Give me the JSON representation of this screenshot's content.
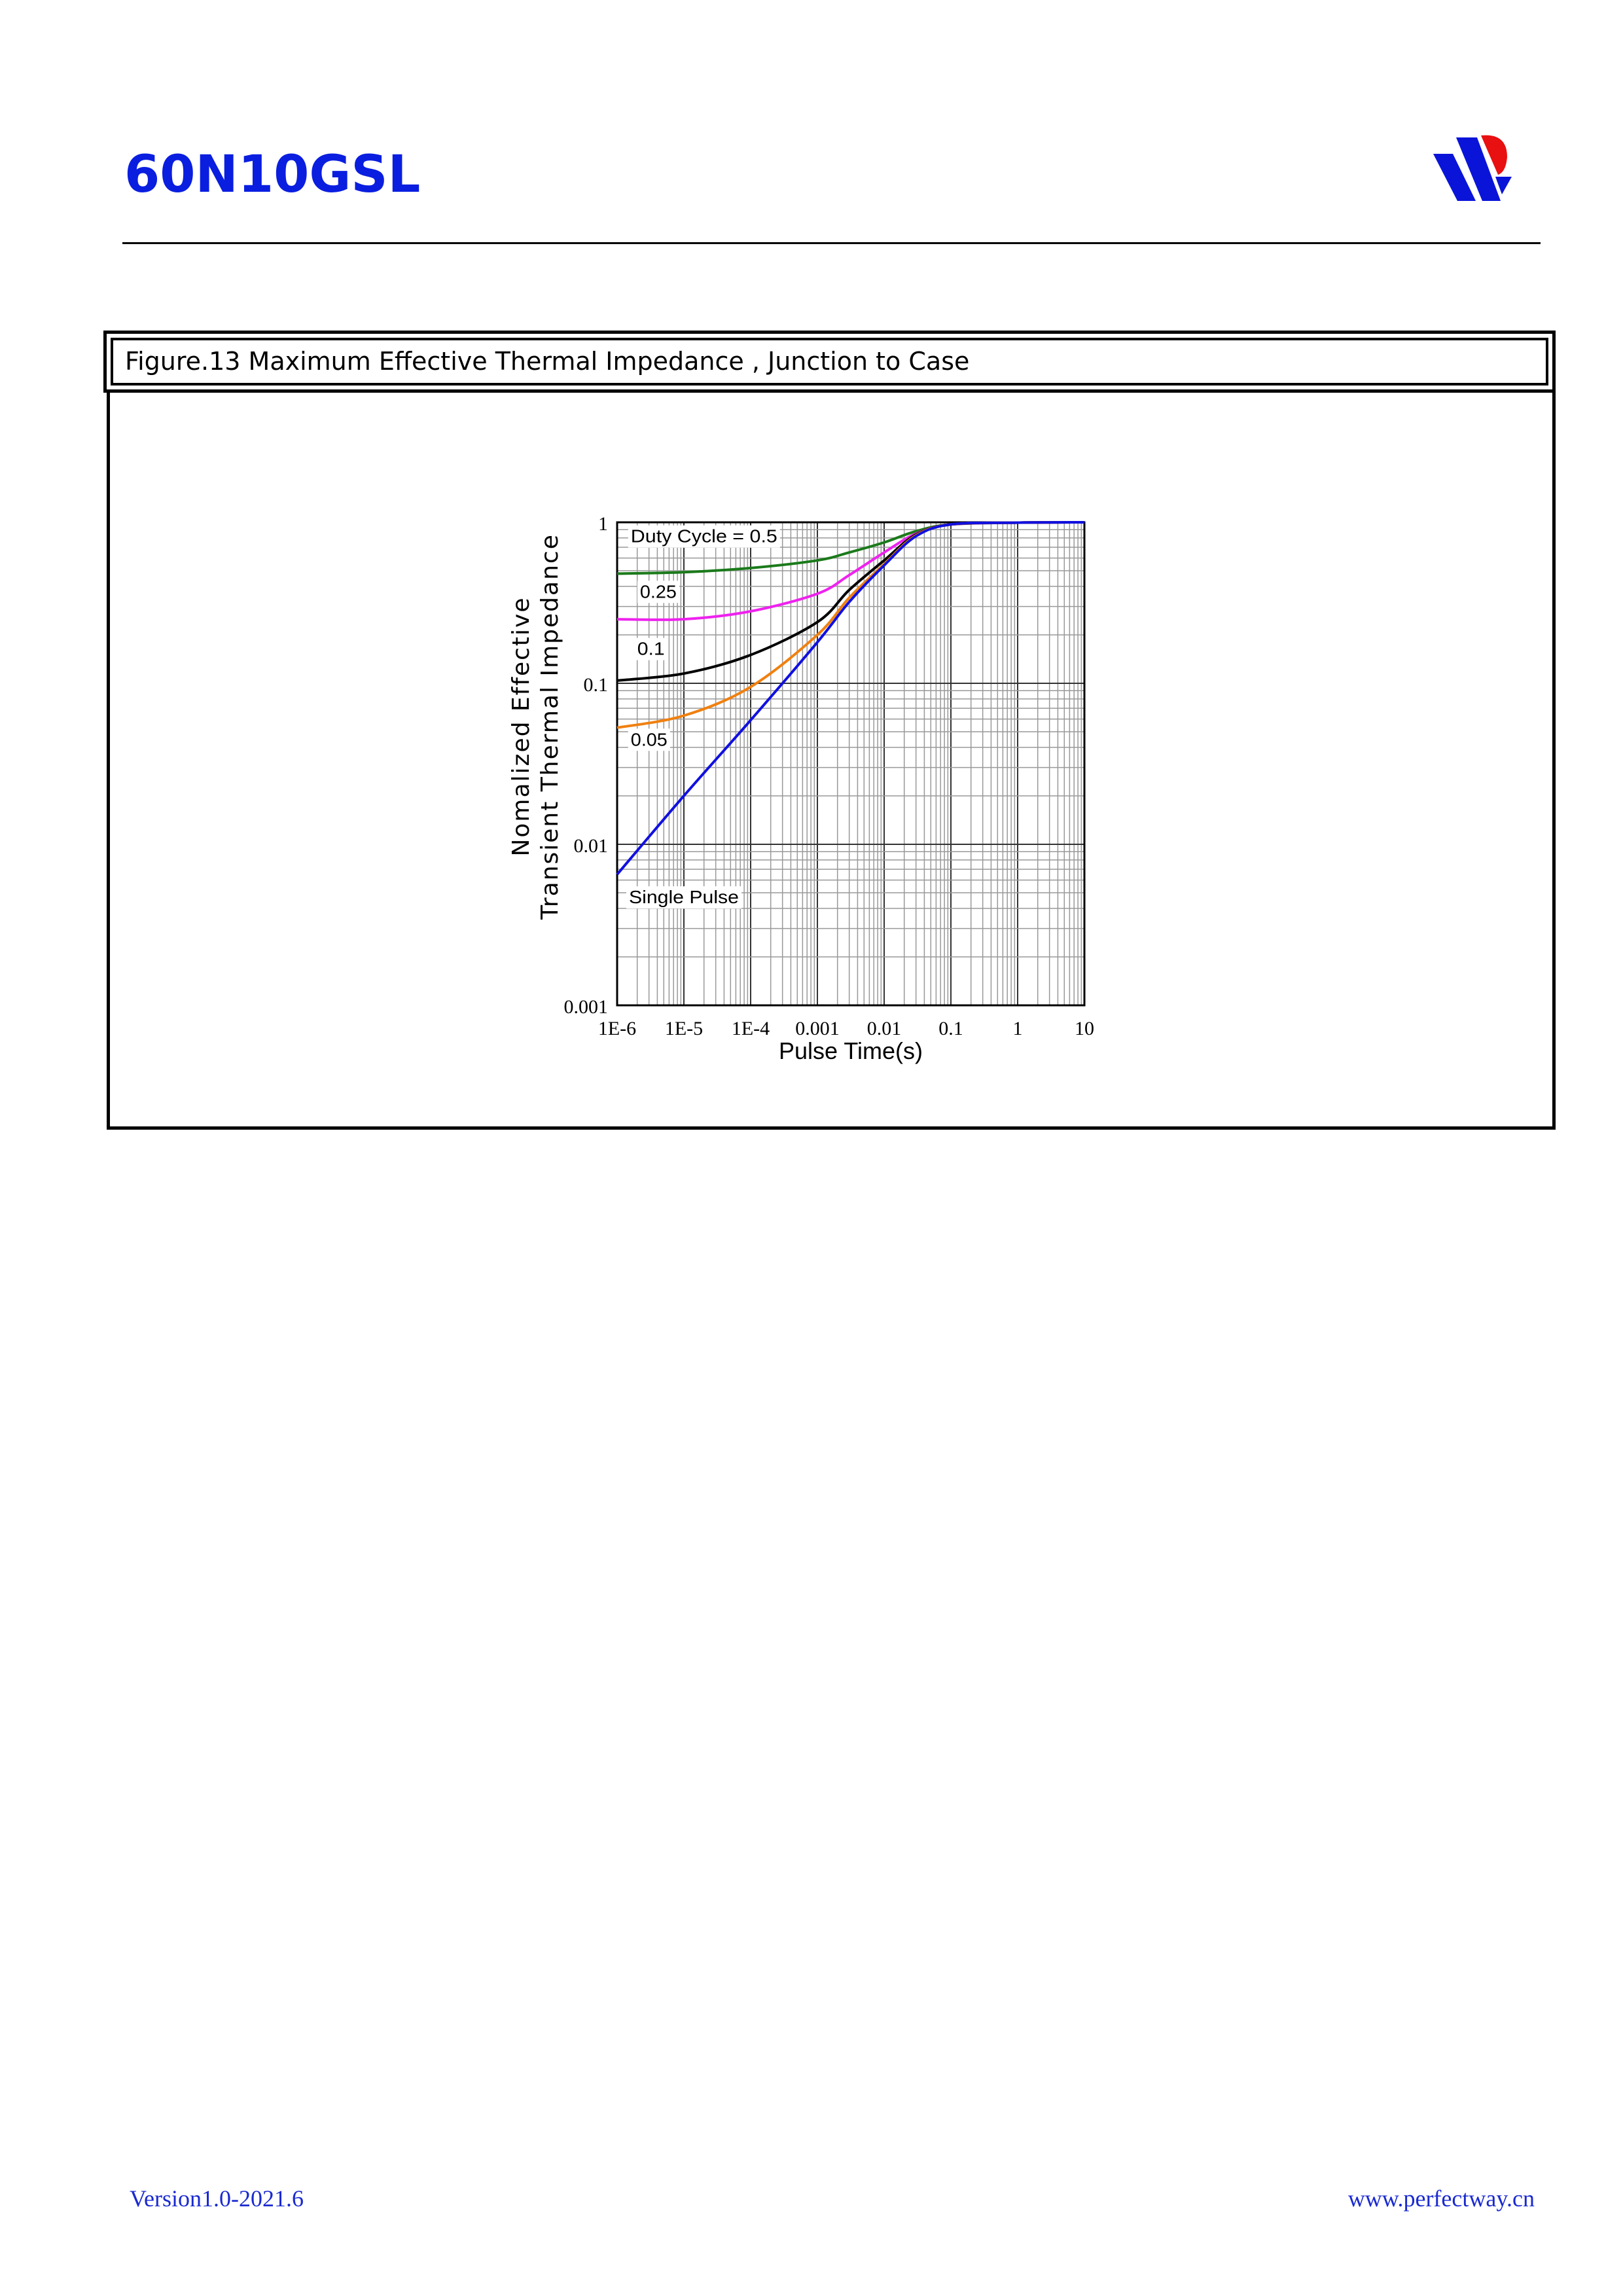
{
  "header": {
    "part_number": "60N10GSL",
    "logo": "perfectway-logo"
  },
  "figure": {
    "title": "Figure.13 Maximum Effective Thermal Impedance , Junction to Case"
  },
  "chart_data": {
    "type": "line",
    "title": "",
    "xlabel": "Pulse Time(s)",
    "ylabel": [
      "Nomalized Effective",
      "Transient Thermal Impedance"
    ],
    "xscale": "log",
    "yscale": "log",
    "xlim": [
      1e-06,
      10
    ],
    "ylim": [
      0.001,
      1
    ],
    "grid": true,
    "xticks": [
      {
        "v": 1e-06,
        "label": "1E-6"
      },
      {
        "v": 1e-05,
        "label": "1E-5"
      },
      {
        "v": 0.0001,
        "label": "1E-4"
      },
      {
        "v": 0.001,
        "label": "0.001"
      },
      {
        "v": 0.01,
        "label": "0.01"
      },
      {
        "v": 0.1,
        "label": "0.1"
      },
      {
        "v": 1,
        "label": "1"
      },
      {
        "v": 10,
        "label": "10"
      }
    ],
    "yticks": [
      {
        "v": 1,
        "label": "1"
      },
      {
        "v": 0.1,
        "label": "0.1"
      },
      {
        "v": 0.01,
        "label": "0.01"
      },
      {
        "v": 0.001,
        "label": "0.001"
      }
    ],
    "series": [
      {
        "name": "Duty Cycle = 0.5",
        "color": "#1a7a1a",
        "x": [
          1e-06,
          1e-05,
          0.0001,
          0.001,
          0.003,
          0.01,
          0.03,
          0.1,
          1,
          10
        ],
        "y": [
          0.48,
          0.49,
          0.52,
          0.58,
          0.65,
          0.75,
          0.88,
          0.97,
          0.995,
          1.0
        ]
      },
      {
        "name": "0.25",
        "color": "#ee22ee",
        "x": [
          1e-06,
          1e-05,
          0.0001,
          0.001,
          0.003,
          0.01,
          0.03,
          0.1,
          1,
          10
        ],
        "y": [
          0.25,
          0.25,
          0.28,
          0.36,
          0.47,
          0.65,
          0.85,
          0.97,
          0.995,
          1.0
        ]
      },
      {
        "name": "0.1",
        "color": "#000000",
        "x": [
          1e-06,
          1e-05,
          0.0001,
          0.001,
          0.003,
          0.01,
          0.03,
          0.1,
          1,
          10
        ],
        "y": [
          0.104,
          0.115,
          0.15,
          0.24,
          0.38,
          0.58,
          0.84,
          0.97,
          0.995,
          1.0
        ]
      },
      {
        "name": "0.05",
        "color": "#f08010",
        "x": [
          1e-06,
          1e-05,
          0.0001,
          0.001,
          0.003,
          0.01,
          0.03,
          0.1,
          1,
          10
        ],
        "y": [
          0.053,
          0.063,
          0.095,
          0.2,
          0.34,
          0.55,
          0.83,
          0.97,
          0.995,
          1.0
        ]
      },
      {
        "name": "Single Pulse",
        "color": "#1010e0",
        "x": [
          1e-06,
          1e-05,
          0.0001,
          0.001,
          0.003,
          0.01,
          0.03,
          0.1,
          1,
          10
        ],
        "y": [
          0.0065,
          0.02,
          0.059,
          0.18,
          0.32,
          0.54,
          0.82,
          0.97,
          0.995,
          1.0
        ]
      }
    ],
    "annotations": [
      {
        "text": "Duty Cycle = 0.5",
        "x": 1.6e-06,
        "y": 0.75
      },
      {
        "text": "0.25",
        "x": 2.2e-06,
        "y": 0.34
      },
      {
        "text": "0.1",
        "x": 2e-06,
        "y": 0.15
      },
      {
        "text": "0.05",
        "x": 1.6e-06,
        "y": 0.041
      },
      {
        "text": "Single Pulse",
        "x": 1.5e-06,
        "y": 0.0043
      }
    ]
  },
  "footer": {
    "version": "Version1.0-2021.6",
    "website": "www.perfectway.cn"
  }
}
